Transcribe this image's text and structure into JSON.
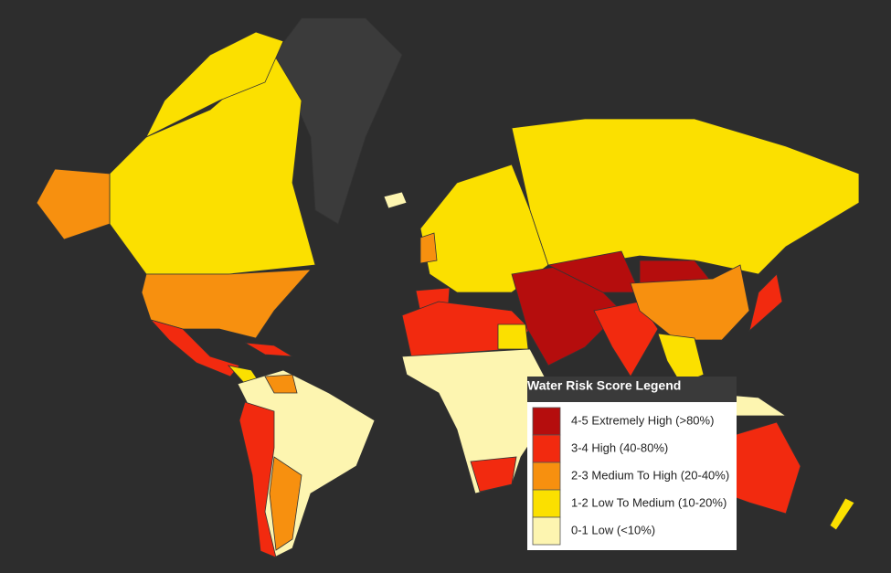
{
  "legend": {
    "title": "Water Risk Score Legend",
    "items": [
      {
        "label": "4-5 Extremely High (>80%)",
        "color": "#b50d0d"
      },
      {
        "label": "3-4 High (40-80%)",
        "color": "#f22a0f"
      },
      {
        "label": "2-3 Medium To High (20-40%)",
        "color": "#f7900f"
      },
      {
        "label": "1-2 Low To Medium (10-20%)",
        "color": "#fbe000"
      },
      {
        "label": "0-1 Low (<10%)",
        "color": "#fdf5b0"
      }
    ]
  }
}
